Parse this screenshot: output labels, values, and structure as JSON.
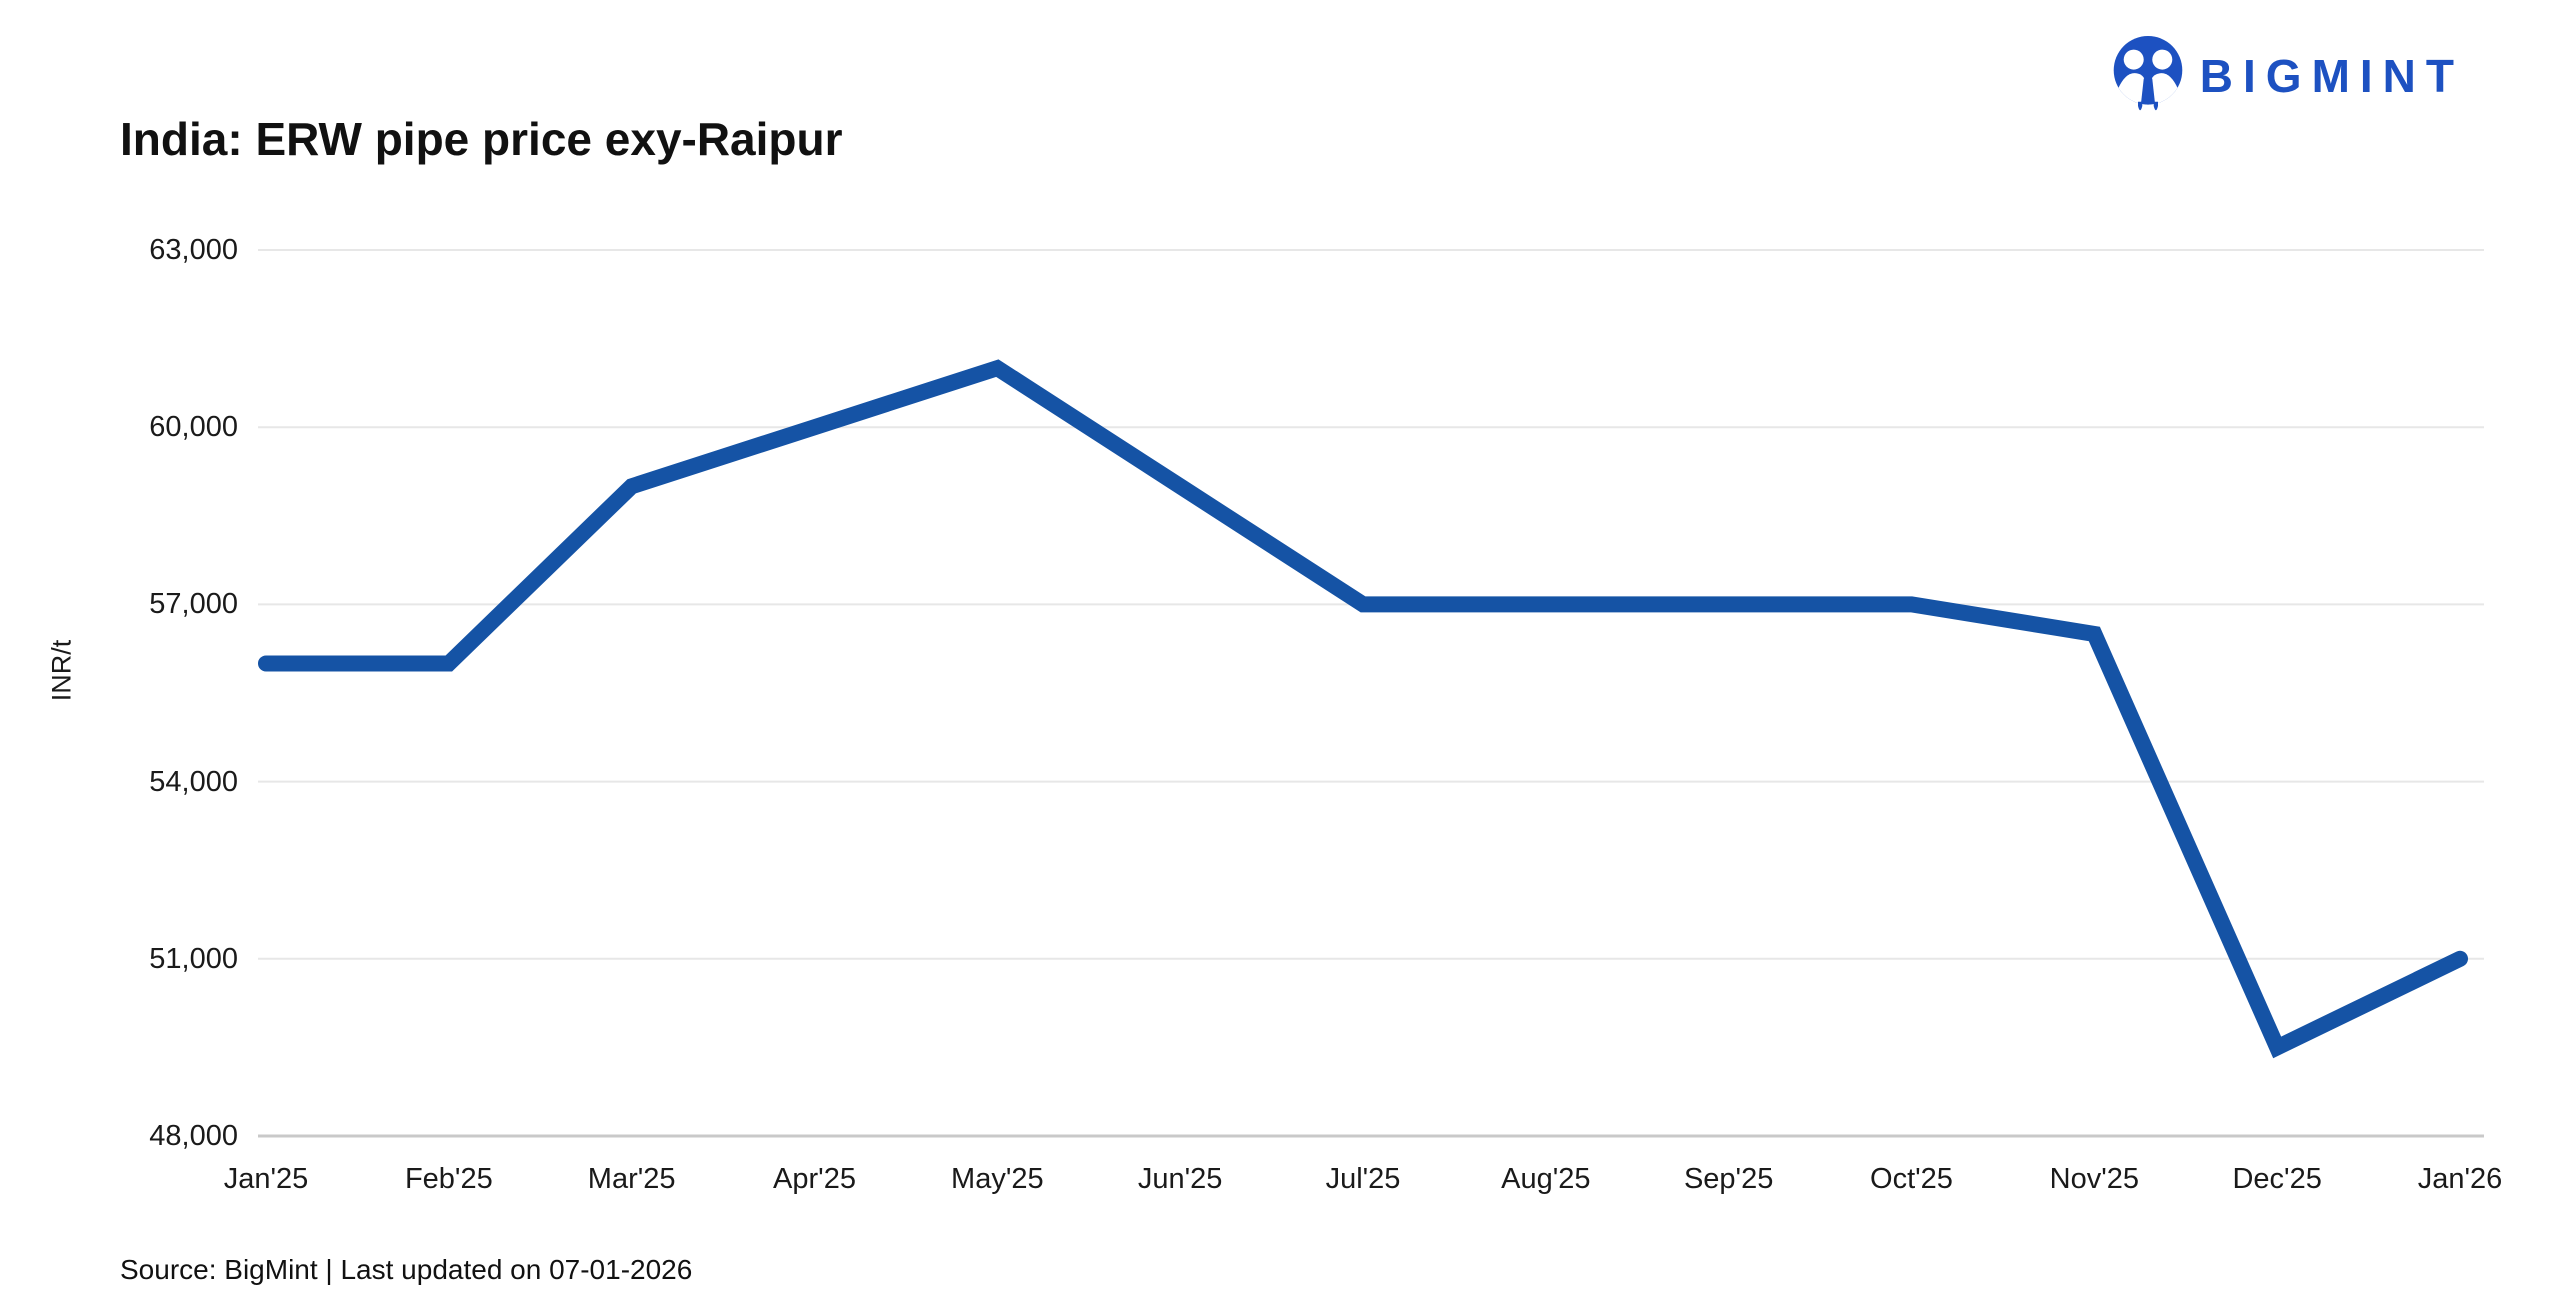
{
  "header": {
    "title": "India: ERW pipe price exy-Raipur",
    "brand": "BIGMINT"
  },
  "footer": {
    "source": "Source: BigMint | Last updated on 07-01-2026"
  },
  "colors": {
    "line": "#1553a5",
    "logo": "#1d51c1",
    "gridline": "#e7e7e7",
    "axis_line": "#c9c9c9",
    "text": "#1a1a1a"
  },
  "chart_data": {
    "type": "line",
    "title": "India: ERW pipe price exy-Raipur",
    "xlabel": "",
    "ylabel": "INR/t",
    "categories": [
      "Jan'25",
      "Feb'25",
      "Mar'25",
      "Apr'25",
      "May'25",
      "Jun'25",
      "Jul'25",
      "Aug'25",
      "Sep'25",
      "Oct'25",
      "Nov'25",
      "Dec'25",
      "Jan'26"
    ],
    "values": [
      56000,
      56000,
      59000,
      60000,
      61000,
      59000,
      57000,
      57000,
      57000,
      57000,
      56500,
      49500,
      51000
    ],
    "ylim": [
      48000,
      63000
    ],
    "yticks": [
      48000,
      51000,
      54000,
      57000,
      60000,
      63000
    ],
    "ytick_labels": [
      "48,000",
      "51,000",
      "54,000",
      "57,000",
      "60,000",
      "63,000"
    ],
    "grid": "horizontal",
    "legend": "none"
  }
}
